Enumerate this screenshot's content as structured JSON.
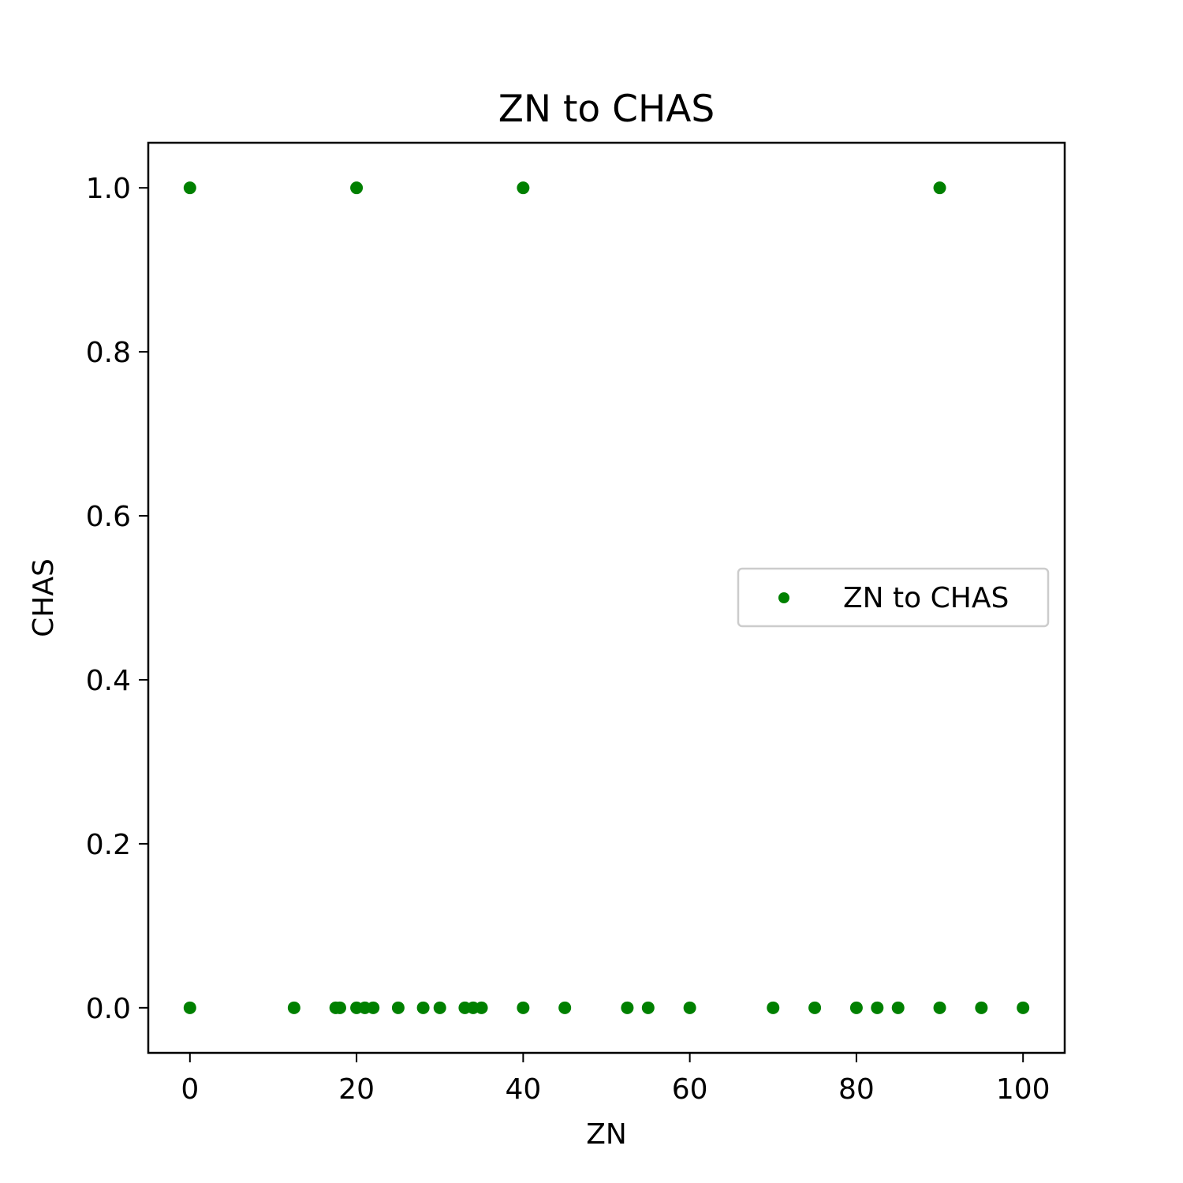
{
  "chart_data": {
    "type": "scatter",
    "title": "ZN to CHAS",
    "xlabel": "ZN",
    "ylabel": "CHAS",
    "xlim": [
      -5,
      105
    ],
    "ylim": [
      -0.055,
      1.055
    ],
    "x_ticks": [
      0,
      20,
      40,
      60,
      80,
      100
    ],
    "x_tick_labels": [
      "0",
      "20",
      "40",
      "60",
      "80",
      "100"
    ],
    "y_ticks": [
      0.0,
      0.2,
      0.4,
      0.6,
      0.8,
      1.0
    ],
    "y_tick_labels": [
      "0.0",
      "0.2",
      "0.4",
      "0.6",
      "0.8",
      "1.0"
    ],
    "grid": false,
    "legend_position": "center-right",
    "series": [
      {
        "name": "ZN to CHAS",
        "color": "#008000",
        "points": [
          {
            "x": 0,
            "y": 1
          },
          {
            "x": 20,
            "y": 1
          },
          {
            "x": 40,
            "y": 1
          },
          {
            "x": 90,
            "y": 1
          },
          {
            "x": 0,
            "y": 0
          },
          {
            "x": 12.5,
            "y": 0
          },
          {
            "x": 17.5,
            "y": 0
          },
          {
            "x": 18,
            "y": 0
          },
          {
            "x": 20,
            "y": 0
          },
          {
            "x": 21,
            "y": 0
          },
          {
            "x": 22,
            "y": 0
          },
          {
            "x": 25,
            "y": 0
          },
          {
            "x": 28,
            "y": 0
          },
          {
            "x": 30,
            "y": 0
          },
          {
            "x": 33,
            "y": 0
          },
          {
            "x": 34,
            "y": 0
          },
          {
            "x": 35,
            "y": 0
          },
          {
            "x": 40,
            "y": 0
          },
          {
            "x": 45,
            "y": 0
          },
          {
            "x": 52.5,
            "y": 0
          },
          {
            "x": 55,
            "y": 0
          },
          {
            "x": 60,
            "y": 0
          },
          {
            "x": 70,
            "y": 0
          },
          {
            "x": 75,
            "y": 0
          },
          {
            "x": 80,
            "y": 0
          },
          {
            "x": 82.5,
            "y": 0
          },
          {
            "x": 85,
            "y": 0
          },
          {
            "x": 90,
            "y": 0
          },
          {
            "x": 95,
            "y": 0
          },
          {
            "x": 100,
            "y": 0
          }
        ]
      }
    ]
  }
}
